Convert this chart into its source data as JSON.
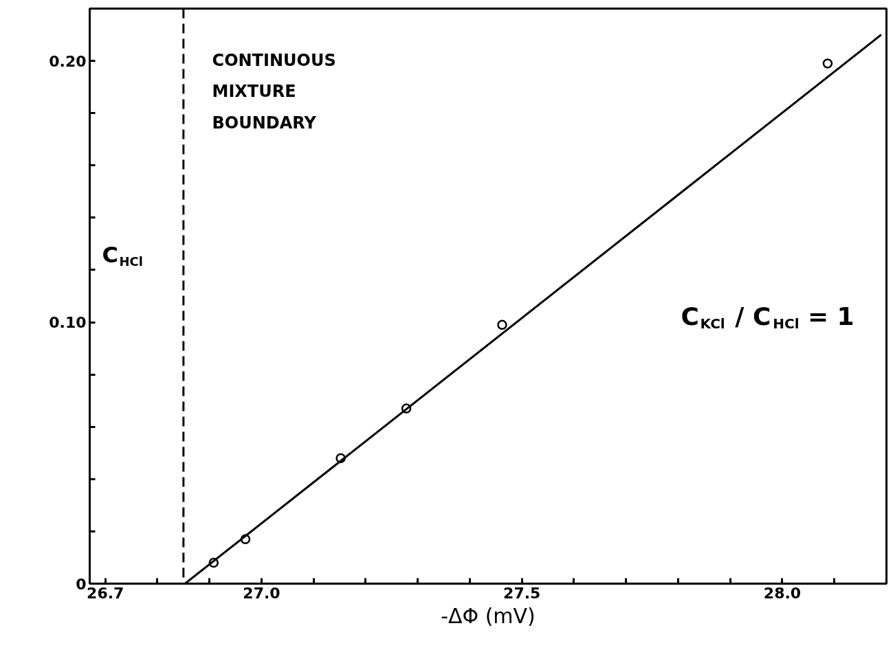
{
  "chart_data": {
    "type": "scatter",
    "xlabel": "-ΔΦ (mV)",
    "ylabel": "C$_{HCl}$",
    "xlim": [
      26.67,
      28.2
    ],
    "ylim": [
      0,
      0.22
    ],
    "xticks": [
      {
        "value": 26.7,
        "label": "26.7"
      },
      {
        "value": 26.8,
        "label": null
      },
      {
        "value": 26.9,
        "label": null
      },
      {
        "value": 27.0,
        "label": "27.0"
      },
      {
        "value": 27.1,
        "label": null
      },
      {
        "value": 27.2,
        "label": null
      },
      {
        "value": 27.3,
        "label": null
      },
      {
        "value": 27.4,
        "label": null
      },
      {
        "value": 27.5,
        "label": "27.5"
      },
      {
        "value": 27.6,
        "label": null
      },
      {
        "value": 27.7,
        "label": null
      },
      {
        "value": 27.8,
        "label": null
      },
      {
        "value": 27.9,
        "label": null
      },
      {
        "value": 28.0,
        "label": "28.0"
      },
      {
        "value": 28.1,
        "label": null
      }
    ],
    "yticks": [
      0,
      {
        "value": 0.02,
        "label": null
      },
      {
        "value": 0.04,
        "label": null
      },
      {
        "value": 0.06,
        "label": null
      },
      {
        "value": 0.08,
        "label": null
      },
      {
        "value": 0.1,
        "label": "0.10"
      },
      {
        "value": 0.12,
        "label": null
      },
      {
        "value": 0.14,
        "label": null
      },
      {
        "value": 0.16,
        "label": null
      },
      {
        "value": 0.18,
        "label": null
      },
      {
        "value": 0.2,
        "label": "0.20"
      }
    ],
    "grid": false,
    "series": [
      {
        "color": "#000000",
        "marker": "circle",
        "x": [
          26.908,
          26.969,
          27.152,
          27.278,
          27.462,
          28.087
        ],
        "values": [
          0.008,
          0.017,
          0.048,
          0.067,
          0.099,
          0.199
        ]
      },
      {
        "type": "line",
        "color": "#000000",
        "marker": "none",
        "line_style": "solid",
        "x": [
          26.853,
          28.19
        ],
        "values": [
          0,
          0.21
        ]
      }
    ],
    "ref_lines": [
      {
        "axis": "x",
        "value": 26.85,
        "label": "CONTINUOUS\nMIXTURE\nBOUNDARY",
        "line_style": "dashed",
        "color": "#000000"
      }
    ],
    "annotations": [
      "C$_{KCl}$ / C$_{HCl}$ = 1"
    ]
  }
}
